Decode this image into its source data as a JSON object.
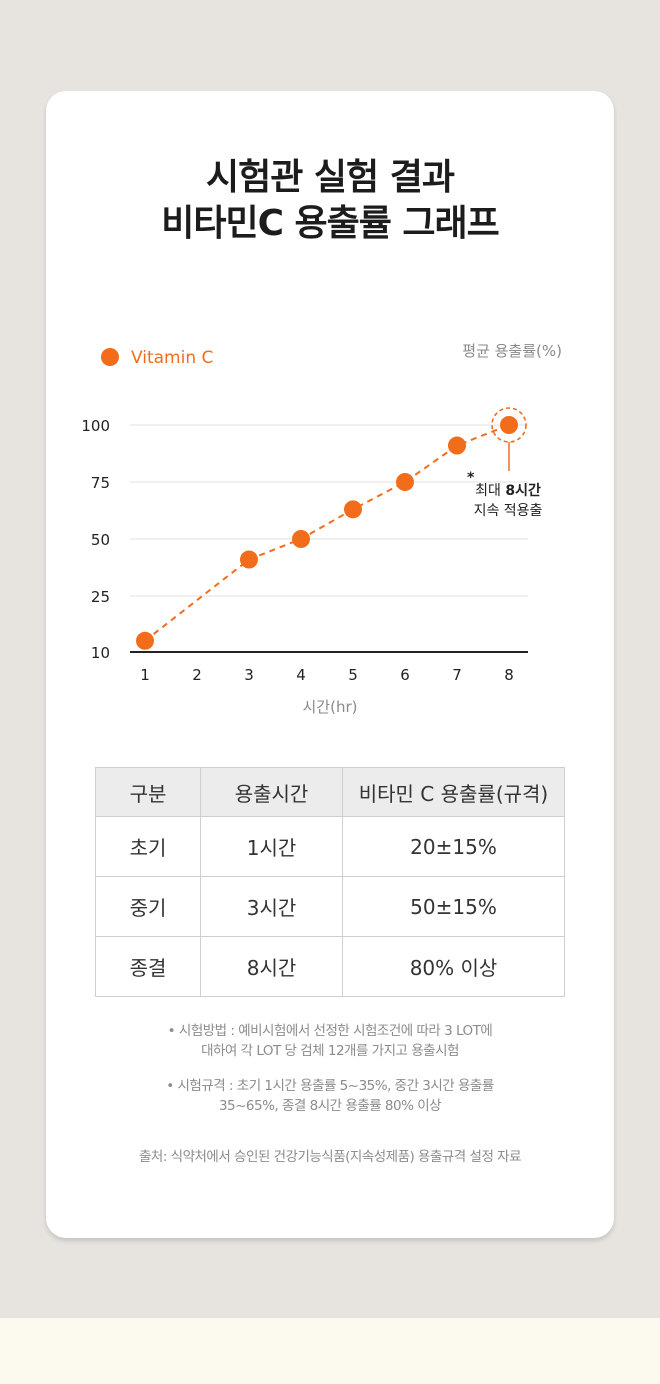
{
  "title_lines": [
    "시험관 실험 결과",
    "비타민C 용출률 그래프"
  ],
  "chart_data": {
    "type": "line",
    "series": [
      {
        "name": "Vitamin C",
        "x": [
          1,
          2,
          3,
          4,
          5,
          6,
          7,
          8
        ],
        "y": [
          13,
          null,
          41,
          50,
          63,
          75,
          91,
          100
        ]
      }
    ],
    "ylabel": "평균 용출률(%)",
    "xlabel": "시간(hr)",
    "x_ticks": [
      "1",
      "2",
      "3",
      "4",
      "5",
      "6",
      "7",
      "8"
    ],
    "y_ticks": [
      "10",
      "25",
      "50",
      "75",
      "100"
    ],
    "line_style": "dashed",
    "legend_position": "top-left",
    "color": "#f26d1b",
    "annotation": {
      "x": 8,
      "y": 100,
      "mark": "*",
      "text_prefix": "최대 ",
      "text_bold": "8시간",
      "text_line2": "지속 적용출"
    }
  },
  "table": {
    "headers": [
      "구분",
      "용출시간",
      "비타민 C 용출률(규격)"
    ],
    "rows": [
      [
        "초기",
        "1시간",
        "20±15%"
      ],
      [
        "중기",
        "3시간",
        "50±15%"
      ],
      [
        "종결",
        "8시간",
        "80% 이상"
      ]
    ]
  },
  "notes": {
    "method": [
      "• 시험방법 : 예비시험에서 선정한 시험조건에 따라 3 LOT에",
      "대하여 각 LOT 당 검체 12개를 가지고 용출시험"
    ],
    "spec": [
      "• 시험규격 : 초기 1시간 용출률 5~35%, 중간 3시간 용출률",
      "35~65%, 종결 8시간 용출률 80% 이상"
    ],
    "source": "출처: 식약처에서 승인된 건강기능식품(지속성제품) 용출규격 설정 자료"
  }
}
